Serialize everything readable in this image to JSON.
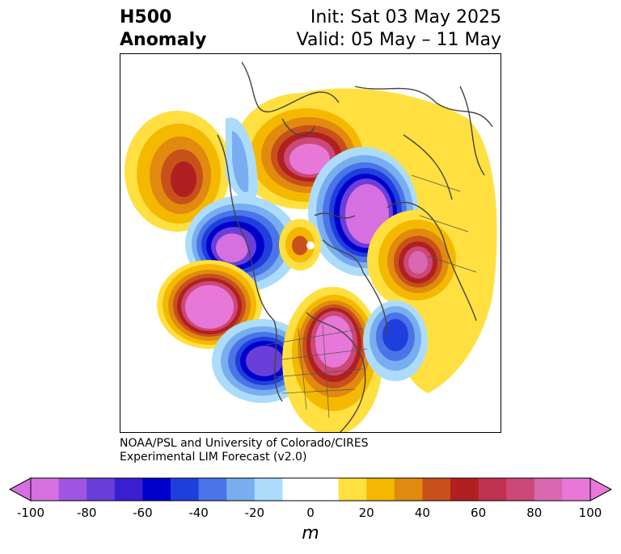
{
  "header": {
    "title_line1": "H500",
    "title_line2": "Anomaly",
    "init": "Init: Sat 03 May 2025",
    "valid": "Valid: 05 May – 11 May"
  },
  "credit": {
    "line1": "NOAA/PSL and University of Colorado/CIRES",
    "line2": "Experimental LIM Forecast (v2.0)"
  },
  "colorbar": {
    "unit": "m",
    "ticks": [
      "-100",
      "-80",
      "-60",
      "-40",
      "-20",
      "0",
      "20",
      "40",
      "60",
      "80",
      "100"
    ],
    "colors": [
      "#d670e0",
      "#9e55e0",
      "#6a3ed8",
      "#3a1fd0",
      "#0000cc",
      "#1f3fdc",
      "#4a74e8",
      "#78aef0",
      "#acdcfa",
      "#ffffff",
      "#ffffff",
      "#ffe040",
      "#f5b800",
      "#e08a10",
      "#c8501a",
      "#b02020",
      "#c03050",
      "#cc4878",
      "#d868b0",
      "#e878d8"
    ]
  },
  "map": {
    "anomaly_levels": {
      "pos_100": "#e878d8",
      "pos_80": "#d868b0",
      "pos_60": "#b02020",
      "pos_40": "#e08a10",
      "pos_20": "#f5b800",
      "pos_10": "#ffe040",
      "neg_10": "#acdcfa",
      "neg_20": "#78aef0",
      "neg_40": "#4a74e8",
      "neg_60": "#0000cc",
      "neg_80": "#6a3ed8",
      "neg_100": "#d670e0"
    }
  }
}
